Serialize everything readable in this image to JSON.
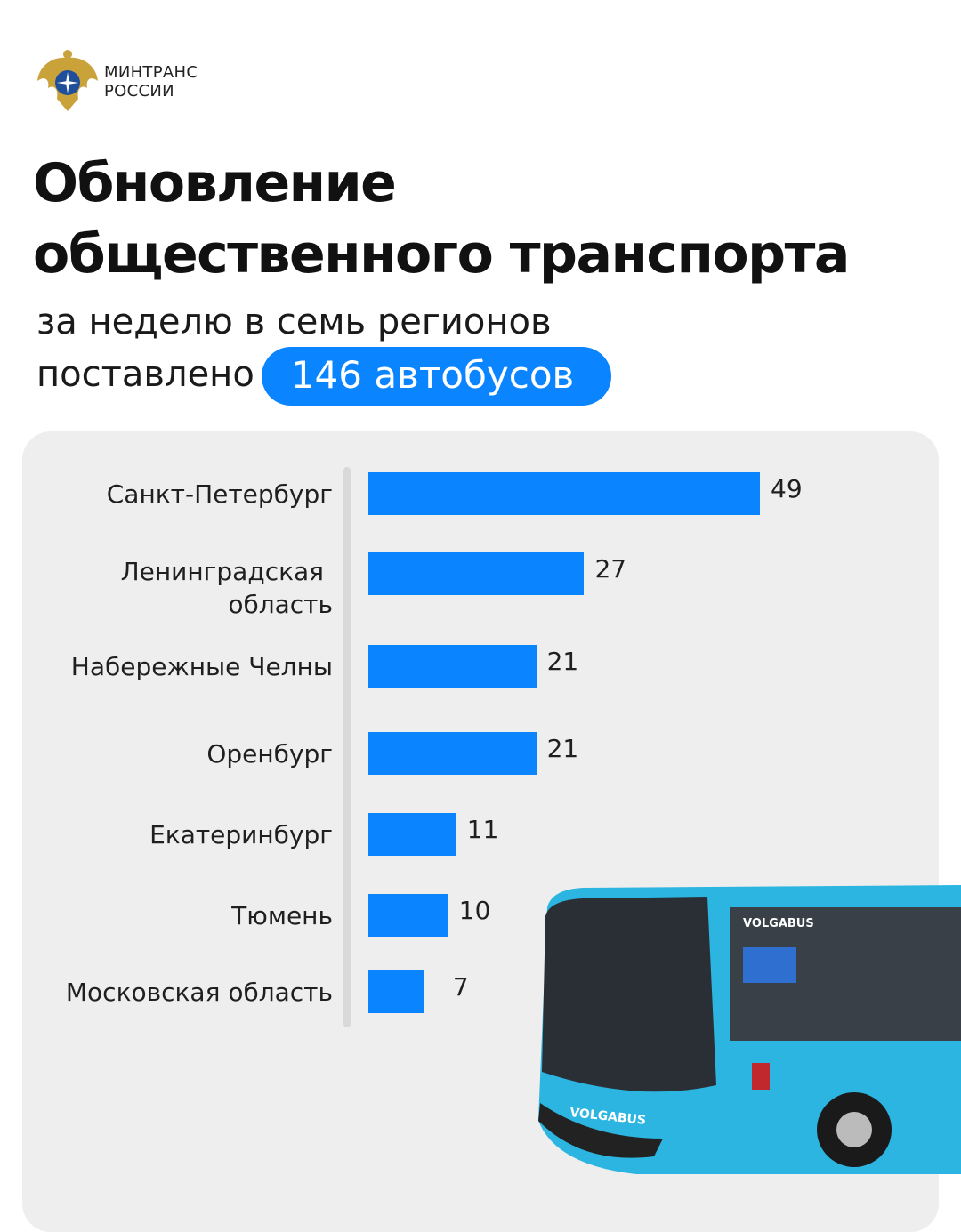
{
  "header": {
    "org_name_line1": "МИНТРАНС",
    "org_name_line2": "РОССИИ",
    "logo_icon": "russian-eagle-emblem"
  },
  "title_line1": "Обновление",
  "title_line2": "общественного транспорта",
  "subtitle_line1": "за неделю в семь регионов",
  "subtitle_line2": "поставлено",
  "badge": "146 автобусов",
  "colors": {
    "accent": "#0a84ff",
    "panel": "#eeeeee",
    "bus": "#2bb5e0"
  },
  "bus_image_text": "VOLGABUS",
  "chart_data": {
    "type": "bar",
    "orientation": "horizontal",
    "categories": [
      "Санкт-Петербург",
      "Ленинградская область",
      "Набережные Челны",
      "Оренбург",
      "Екатеринбург",
      "Тюмень",
      "Московская область"
    ],
    "category_lines": [
      [
        "Санкт-Петербург"
      ],
      [
        "Ленинградская",
        "область"
      ],
      [
        "Набережные Челны"
      ],
      [
        "Оренбург"
      ],
      [
        "Екатеринбург"
      ],
      [
        "Тюмень"
      ],
      [
        "Московская область"
      ]
    ],
    "values": [
      49,
      27,
      21,
      21,
      11,
      10,
      7
    ],
    "data_labels": [
      "49",
      "27",
      "21",
      "21",
      "11",
      "10",
      "7"
    ],
    "xlim": [
      0,
      49
    ],
    "grid": false,
    "legend": "none",
    "color": "#0a84ff"
  }
}
